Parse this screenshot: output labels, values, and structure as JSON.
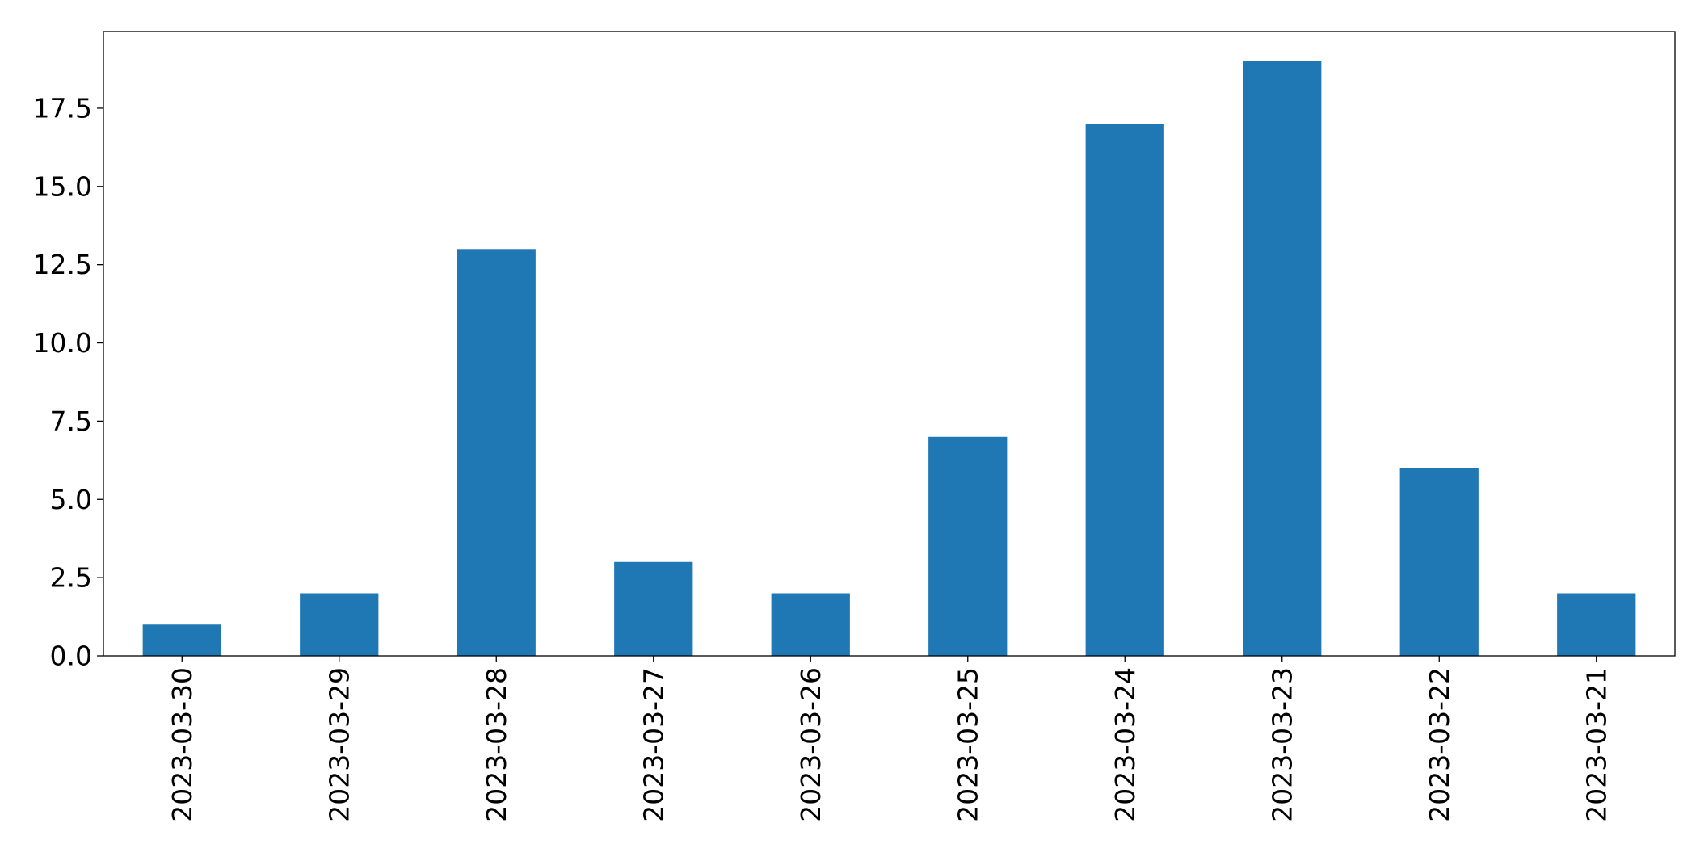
{
  "chart_data": {
    "type": "bar",
    "categories": [
      "2023-03-30",
      "2023-03-29",
      "2023-03-28",
      "2023-03-27",
      "2023-03-26",
      "2023-03-25",
      "2023-03-24",
      "2023-03-23",
      "2023-03-22",
      "2023-03-21"
    ],
    "values": [
      1,
      2,
      13,
      3,
      2,
      7,
      17,
      19,
      6,
      2
    ],
    "title": "",
    "xlabel": "",
    "ylabel": "",
    "ylim": [
      0,
      19.95
    ],
    "yticks": [
      0.0,
      2.5,
      5.0,
      7.5,
      10.0,
      12.5,
      15.0,
      17.5
    ],
    "ytick_labels": [
      "0.0",
      "2.5",
      "5.0",
      "7.5",
      "10.0",
      "12.5",
      "15.0",
      "17.5"
    ],
    "grid": false,
    "legend": "none",
    "bar_color": "#1f77b4"
  }
}
